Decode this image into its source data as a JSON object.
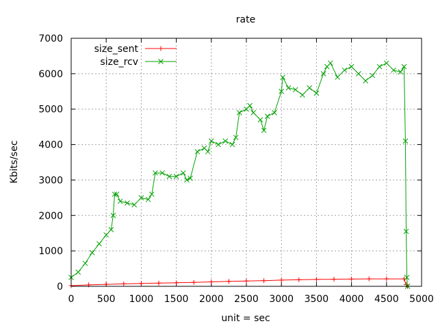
{
  "chart_data": {
    "type": "line",
    "title": "rate",
    "xlabel": "unit = sec",
    "ylabel": "Kbits/sec",
    "xlim": [
      0,
      5000
    ],
    "ylim": [
      0,
      7000
    ],
    "xticks": [
      0,
      500,
      1000,
      1500,
      2000,
      2500,
      3000,
      3500,
      4000,
      4500,
      5000
    ],
    "xtick_labels": [
      "0",
      "500",
      "1000",
      "1500",
      "2000",
      "2500",
      "3000",
      "3500",
      "4000",
      "4500",
      "5000"
    ],
    "yticks": [
      0,
      1000,
      2000,
      3000,
      4000,
      5000,
      6000,
      7000
    ],
    "ytick_labels": [
      "0",
      "1000",
      "2000",
      "3000",
      "4000",
      "5000",
      "6000",
      "7000"
    ],
    "grid": true,
    "legend_position": "top-left",
    "series": [
      {
        "name": "size_sent",
        "color": "#ff0000",
        "marker": "plus",
        "x": [
          0,
          250,
          500,
          750,
          1000,
          1250,
          1500,
          1750,
          2000,
          2250,
          2500,
          2750,
          3000,
          3250,
          3500,
          3750,
          4000,
          4250,
          4500,
          4750,
          4780,
          4800
        ],
        "y": [
          20,
          40,
          55,
          70,
          80,
          90,
          100,
          110,
          125,
          140,
          150,
          160,
          175,
          185,
          195,
          200,
          205,
          210,
          210,
          210,
          50,
          0
        ]
      },
      {
        "name": "size_rcv",
        "color": "#00a000",
        "marker": "cross",
        "x": [
          0,
          100,
          200,
          300,
          400,
          500,
          570,
          600,
          620,
          650,
          700,
          800,
          900,
          1000,
          1100,
          1150,
          1200,
          1300,
          1400,
          1500,
          1600,
          1650,
          1700,
          1800,
          1900,
          1950,
          2000,
          2100,
          2200,
          2300,
          2350,
          2400,
          2500,
          2550,
          2600,
          2700,
          2750,
          2800,
          2900,
          3000,
          3020,
          3100,
          3200,
          3300,
          3400,
          3500,
          3600,
          3650,
          3700,
          3800,
          3900,
          4000,
          4100,
          4200,
          4300,
          4400,
          4500,
          4600,
          4700,
          4750,
          4770,
          4780,
          4790,
          4800
        ],
        "y": [
          250,
          400,
          650,
          950,
          1200,
          1450,
          1600,
          2000,
          2600,
          2600,
          2400,
          2350,
          2300,
          2500,
          2450,
          2600,
          3200,
          3200,
          3100,
          3100,
          3200,
          3000,
          3050,
          3800,
          3900,
          3800,
          4100,
          4000,
          4100,
          4000,
          4200,
          4900,
          5000,
          5100,
          4900,
          4700,
          4400,
          4800,
          4900,
          5500,
          5900,
          5600,
          5550,
          5400,
          5600,
          5450,
          6000,
          6200,
          6300,
          5900,
          6100,
          6200,
          6000,
          5800,
          5950,
          6200,
          6300,
          6100,
          6050,
          6200,
          4100,
          1550,
          250,
          0
        ]
      }
    ]
  }
}
